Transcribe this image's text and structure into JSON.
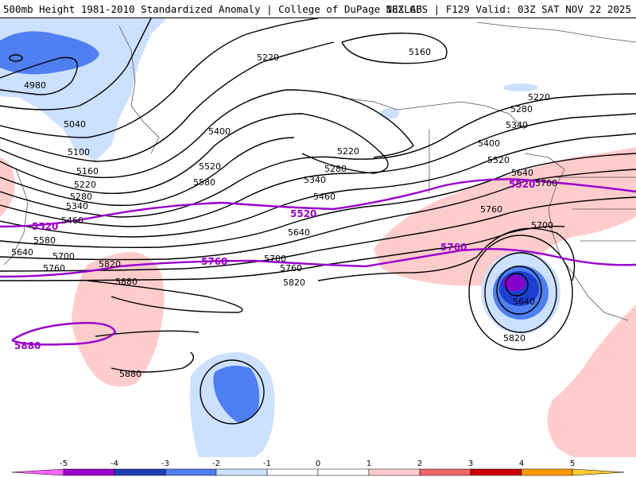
{
  "header": {
    "title_left": "500mb Height 1981-2010 Standardized Anomaly | College of DuPage NEXLAB",
    "title_right": "18Z GFS | F129 Valid: 03Z SAT NOV 22 2025"
  },
  "map": {
    "black_contour_labels": [
      {
        "text": "4980"
      },
      {
        "text": "5040"
      },
      {
        "text": "5100"
      },
      {
        "text": "5160"
      },
      {
        "text": "5220"
      },
      {
        "text": "5280"
      },
      {
        "text": "5340"
      },
      {
        "text": "5460"
      },
      {
        "text": "5580"
      },
      {
        "text": "5640"
      },
      {
        "text": "5700"
      },
      {
        "text": "5760"
      },
      {
        "text": "5820"
      },
      {
        "text": "5880"
      },
      {
        "text": "5220"
      },
      {
        "text": "5400"
      },
      {
        "text": "5520"
      },
      {
        "text": "5580"
      },
      {
        "text": "5160"
      },
      {
        "text": "5220"
      },
      {
        "text": "5280"
      },
      {
        "text": "5340"
      },
      {
        "text": "5460"
      },
      {
        "text": "5640"
      },
      {
        "text": "5700"
      },
      {
        "text": "5760"
      },
      {
        "text": "5820"
      },
      {
        "text": "5220"
      },
      {
        "text": "5280"
      },
      {
        "text": "5340"
      },
      {
        "text": "5400"
      },
      {
        "text": "5520"
      },
      {
        "text": "5640"
      },
      {
        "text": "5700"
      },
      {
        "text": "5760"
      },
      {
        "text": "5700"
      },
      {
        "text": "5640"
      },
      {
        "text": "5820"
      },
      {
        "text": "5880"
      }
    ],
    "purple_contour_labels": [
      {
        "text": "5520"
      },
      {
        "text": "5520"
      },
      {
        "text": "5520"
      },
      {
        "text": "5760"
      },
      {
        "text": "5760"
      },
      {
        "text": "5880"
      }
    ],
    "colors": {
      "contour": "#000000",
      "highlight_contour": "#9900cc",
      "anomaly_neg1": "#cce0ff",
      "anomaly_neg2": "#4f7ff0",
      "anomaly_neg3": "#1f3fd0",
      "anomaly_neg4": "#8800cc",
      "anomaly_pos1": "#ffcccc",
      "land_outline": "#555555"
    }
  },
  "colorbar": {
    "ticks": [
      "-5",
      "-4",
      "-3",
      "-2",
      "-1",
      "0",
      "1",
      "2",
      "3",
      "4",
      "5"
    ],
    "colors": [
      "#ff66ff",
      "#9900cc",
      "#1f3fb0",
      "#4f7ff0",
      "#cce0ff",
      "#ffffff",
      "#ffffff",
      "#ffcccc",
      "#ee6666",
      "#cc0000",
      "#ff9900",
      "#ffcc33"
    ]
  }
}
